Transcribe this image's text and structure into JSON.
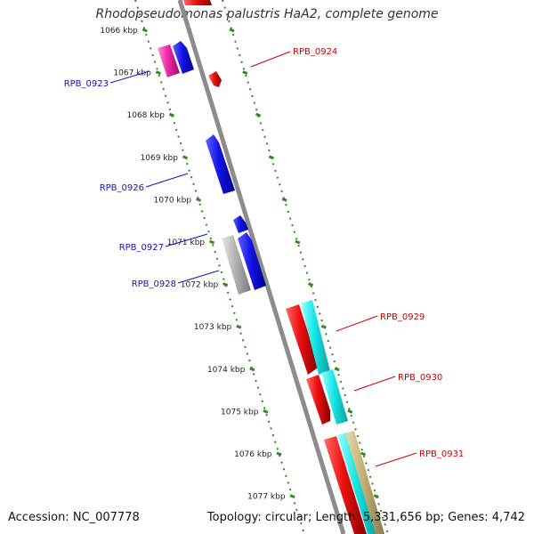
{
  "title": "Rhodopseudomonas palustris HaA2, complete genome",
  "accession_text": "Accession: NC_007778",
  "summary_text": "Topology: circular; Length: 5,331,656 bp; Genes: 4,742",
  "colors": {
    "backbone": "#8c8c8c",
    "tick": "#2e8b1e",
    "reverse_label": "#1010c8",
    "forward_label": "#d00000",
    "blue": "#1414e6",
    "red": "#ee1010",
    "magenta": "#ee2aa8",
    "gray": "#b4b4b4",
    "cyan": "#18e6e6",
    "tan": "#c4b078"
  },
  "ticks": [
    {
      "kbp": 1066,
      "label": "1066 kbp"
    },
    {
      "kbp": 1067,
      "label": "1067 kbp"
    },
    {
      "kbp": 1068,
      "label": "1068 kbp"
    },
    {
      "kbp": 1069,
      "label": "1069 kbp"
    },
    {
      "kbp": 1070,
      "label": "1070 kbp"
    },
    {
      "kbp": 1071,
      "label": "1071 kbp"
    },
    {
      "kbp": 1072,
      "label": "1072 kbp"
    },
    {
      "kbp": 1073,
      "label": "1073 kbp"
    },
    {
      "kbp": 1074,
      "label": "1074 kbp"
    },
    {
      "kbp": 1075,
      "label": "1075 kbp"
    },
    {
      "kbp": 1076,
      "label": "1076 kbp"
    },
    {
      "kbp": 1077,
      "label": "1077 kbp"
    }
  ],
  "gene_labels": [
    {
      "name": "RPB_0923",
      "strand": "reverse"
    },
    {
      "name": "RPB_0924",
      "strand": "forward"
    },
    {
      "name": "RPB_0926",
      "strand": "reverse"
    },
    {
      "name": "RPB_0927",
      "strand": "reverse"
    },
    {
      "name": "RPB_0928",
      "strand": "reverse"
    },
    {
      "name": "RPB_0929",
      "strand": "forward"
    },
    {
      "name": "RPB_0930",
      "strand": "forward"
    },
    {
      "name": "RPB_0931",
      "strand": "forward"
    }
  ]
}
